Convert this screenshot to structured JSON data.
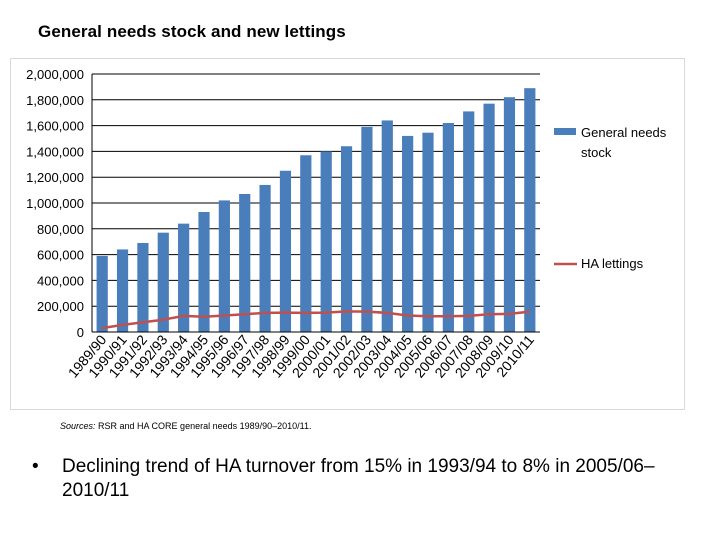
{
  "title": "General needs stock and new lettings",
  "chart_data": {
    "type": "bar+line",
    "categories": [
      "1989/90",
      "1990/91",
      "1991/92",
      "1992/93",
      "1993/94",
      "1994/95",
      "1995/96",
      "1996/97",
      "1997/98",
      "1998/99",
      "1999/00",
      "2000/01",
      "2001/02",
      "2002/03",
      "2003/04",
      "2004/05",
      "2005/06",
      "2006/07",
      "2007/08",
      "2008/09",
      "2009/10",
      "2010/11"
    ],
    "series": [
      {
        "name": "General needs stock",
        "type": "bar",
        "color": "#4a7ebb",
        "values": [
          590000,
          640000,
          690000,
          770000,
          840000,
          930000,
          1020000,
          1070000,
          1140000,
          1250000,
          1370000,
          1400000,
          1440000,
          1590000,
          1640000,
          1520000,
          1545000,
          1620000,
          1710000,
          1770000,
          1820000,
          1890000
        ]
      },
      {
        "name": "HA lettings",
        "type": "line",
        "color": "#c0504d",
        "values": [
          30000,
          55000,
          75000,
          95000,
          125000,
          118000,
          128000,
          138000,
          148000,
          150000,
          148000,
          150000,
          160000,
          158000,
          148000,
          128000,
          122000,
          122000,
          125000,
          138000,
          140000,
          158000
        ]
      }
    ],
    "y_ticks": [
      "0",
      "200,000",
      "400,000",
      "600,000",
      "800,000",
      "1,000,000",
      "1,200,000",
      "1,400,000",
      "1,600,000",
      "1,800,000",
      "2,000,000"
    ],
    "ylim": [
      0,
      2000000
    ],
    "legend": [
      "General needs stock",
      "HA lettings"
    ],
    "legend_position": "right"
  },
  "legend": {
    "stock_line1": "General needs",
    "stock_line2": "stock",
    "lettings": "HA lettings"
  },
  "sources": {
    "label": "Sources:",
    "text": " RSR and HA CORE general needs 1989/90–2010/11."
  },
  "bullet": {
    "symbol": "•",
    "text": "Declining trend of HA turnover from 15% in 1993/94 to 8% in 2005/06–2010/11"
  }
}
